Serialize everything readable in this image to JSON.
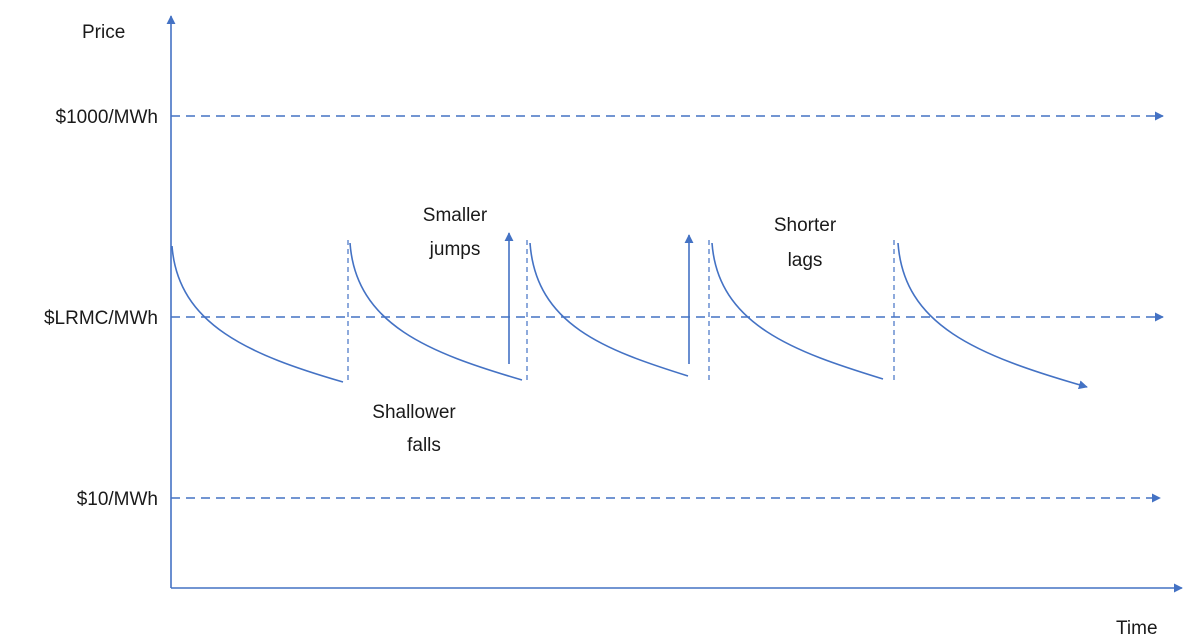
{
  "axes": {
    "y_label": "Price",
    "x_label": "Time"
  },
  "levels": [
    {
      "id": "high",
      "label": "$1000/MWh"
    },
    {
      "id": "lrmc",
      "label": "$LRMC/MWh"
    },
    {
      "id": "low",
      "label": "$10/MWh"
    }
  ],
  "annotations": {
    "smaller_jumps": [
      "Smaller",
      "jumps"
    ],
    "shorter_lags": [
      "Shorter",
      "lags"
    ],
    "shallower_falls": [
      "Shallower",
      "falls"
    ]
  },
  "colors": {
    "line": "#4472c4",
    "text": "#1a1a1a"
  }
}
